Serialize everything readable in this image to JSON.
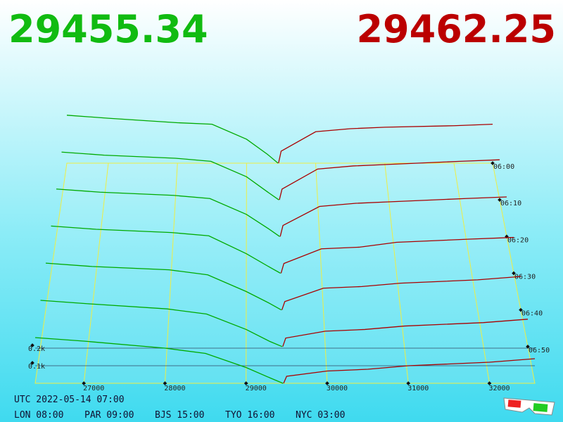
{
  "header": {
    "bid": "29455.34",
    "ask": "29462.25"
  },
  "chart_data": {
    "type": "depth3d",
    "xlim": [
      26400,
      32560
    ],
    "xticks": [
      27000,
      28000,
      29000,
      30000,
      31000,
      32000
    ],
    "tlim": [
      360,
      420
    ],
    "tticks": [
      {
        "value": 360,
        "label": "06:00"
      },
      {
        "value": 370,
        "label": "06:10"
      },
      {
        "value": 380,
        "label": "06:20"
      },
      {
        "value": 390,
        "label": "06:30"
      },
      {
        "value": 400,
        "label": "06:40"
      },
      {
        "value": 410,
        "label": "06:50"
      }
    ],
    "yticks": [
      {
        "value": 0.1,
        "label": "0.1k"
      },
      {
        "value": 0.2,
        "label": "0.2k"
      }
    ],
    "bid_color": "#00aa00",
    "ask_color": "#aa0000",
    "bid_prices": [
      26400,
      27000,
      28000,
      28500,
      29000,
      29300,
      29455.34
    ],
    "ask_prices": [
      29462.25,
      29500,
      30000,
      30500,
      31000,
      32000,
      32560
    ],
    "snapshots": [
      {
        "time": 360,
        "bids": [
          0.32,
          0.3,
          0.27,
          0.26,
          0.16,
          0.06,
          0
        ],
        "asks": [
          0,
          0.08,
          0.21,
          0.23,
          0.24,
          0.25,
          0.26
        ]
      },
      {
        "time": 370,
        "bids": [
          0.31,
          0.29,
          0.27,
          0.25,
          0.15,
          0.05,
          0
        ],
        "asks": [
          0,
          0.07,
          0.2,
          0.22,
          0.23,
          0.25,
          0.26
        ]
      },
      {
        "time": 380,
        "bids": [
          0.3,
          0.28,
          0.26,
          0.24,
          0.14,
          0.05,
          0
        ],
        "asks": [
          0,
          0.07,
          0.19,
          0.21,
          0.22,
          0.24,
          0.25
        ]
      },
      {
        "time": 390,
        "bids": [
          0.29,
          0.27,
          0.25,
          0.23,
          0.12,
          0.04,
          0
        ],
        "asks": [
          0,
          0.06,
          0.15,
          0.16,
          0.19,
          0.21,
          0.22
        ]
      },
      {
        "time": 400,
        "bids": [
          0.28,
          0.26,
          0.24,
          0.21,
          0.11,
          0.04,
          0
        ],
        "asks": [
          0,
          0.05,
          0.13,
          0.14,
          0.16,
          0.18,
          0.2
        ]
      },
      {
        "time": 410,
        "bids": [
          0.27,
          0.25,
          0.22,
          0.19,
          0.1,
          0.03,
          0
        ],
        "asks": [
          0,
          0.05,
          0.09,
          0.1,
          0.12,
          0.14,
          0.16
        ]
      },
      {
        "time": 420,
        "bids": [
          0.26,
          0.24,
          0.2,
          0.17,
          0.09,
          0.03,
          0
        ],
        "asks": [
          0,
          0.04,
          0.07,
          0.08,
          0.1,
          0.12,
          0.14
        ]
      }
    ]
  },
  "footer": {
    "utc": "UTC 2022-05-14 07:00",
    "zones": [
      "LON 08:00",
      "PAR 09:00",
      "BJS 15:00",
      "TYO 16:00",
      "NYC 03:00"
    ]
  }
}
